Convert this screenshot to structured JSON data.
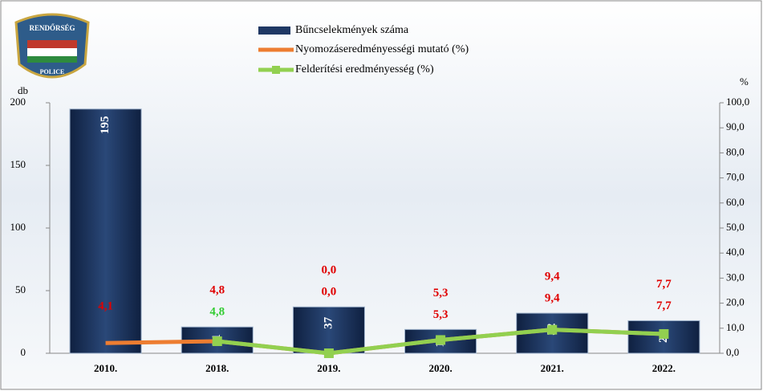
{
  "chart_data": {
    "type": "bar_line",
    "logo": {
      "top": "RENDŐRSÉG",
      "bottom": "POLICE"
    },
    "ylabel": "db",
    "y2label": "%",
    "categories": [
      "2010.",
      "2018.",
      "2019.",
      "2020.",
      "2021.",
      "2022."
    ],
    "series": [
      {
        "name": "Bűncselekmények száma",
        "type": "bar",
        "color": "#1f3864",
        "values": [
          195,
          21,
          37,
          19,
          32,
          26
        ]
      },
      {
        "name": "Nyomozáseredményességi mutató (%)",
        "type": "line",
        "axis": "y2",
        "color": "#ed7d31",
        "values": [
          4.1,
          4.8,
          0.0,
          5.3,
          9.4,
          7.7
        ],
        "value_labels": [
          "4,1",
          "4,8",
          "0,0",
          "5,3",
          "9,4",
          "7,7"
        ],
        "label_color": "#e00000"
      },
      {
        "name": "Felderítési eredményesség (%)",
        "type": "line",
        "axis": "y2",
        "color": "#92d050",
        "marker": "square",
        "values": [
          null,
          4.8,
          0.0,
          5.3,
          9.4,
          7.7
        ],
        "value_labels": [
          null,
          "4,8",
          "0,0",
          "5,3",
          "9,4",
          "7,7"
        ],
        "label_colors": [
          null,
          "#33cc33",
          "#e00000",
          "#e00000",
          "#e00000",
          "#e00000"
        ]
      }
    ],
    "ylim": [
      0,
      200
    ],
    "yticks": [
      0,
      50,
      100,
      150,
      200
    ],
    "y2lim": [
      0,
      100
    ],
    "y2ticks": [
      {
        "value": 0,
        "label": "0,0"
      },
      {
        "value": 10,
        "label": "10,0"
      },
      {
        "value": 20,
        "label": "20,0"
      },
      {
        "value": 30,
        "label": "30,0"
      },
      {
        "value": 40,
        "label": "40,0"
      },
      {
        "value": 50,
        "label": "50,0"
      },
      {
        "value": 60,
        "label": "60,0"
      },
      {
        "value": 70,
        "label": "70,0"
      },
      {
        "value": 80,
        "label": "80,0"
      },
      {
        "value": 90,
        "label": "90,0"
      },
      {
        "value": 100,
        "label": "100,0"
      }
    ]
  }
}
